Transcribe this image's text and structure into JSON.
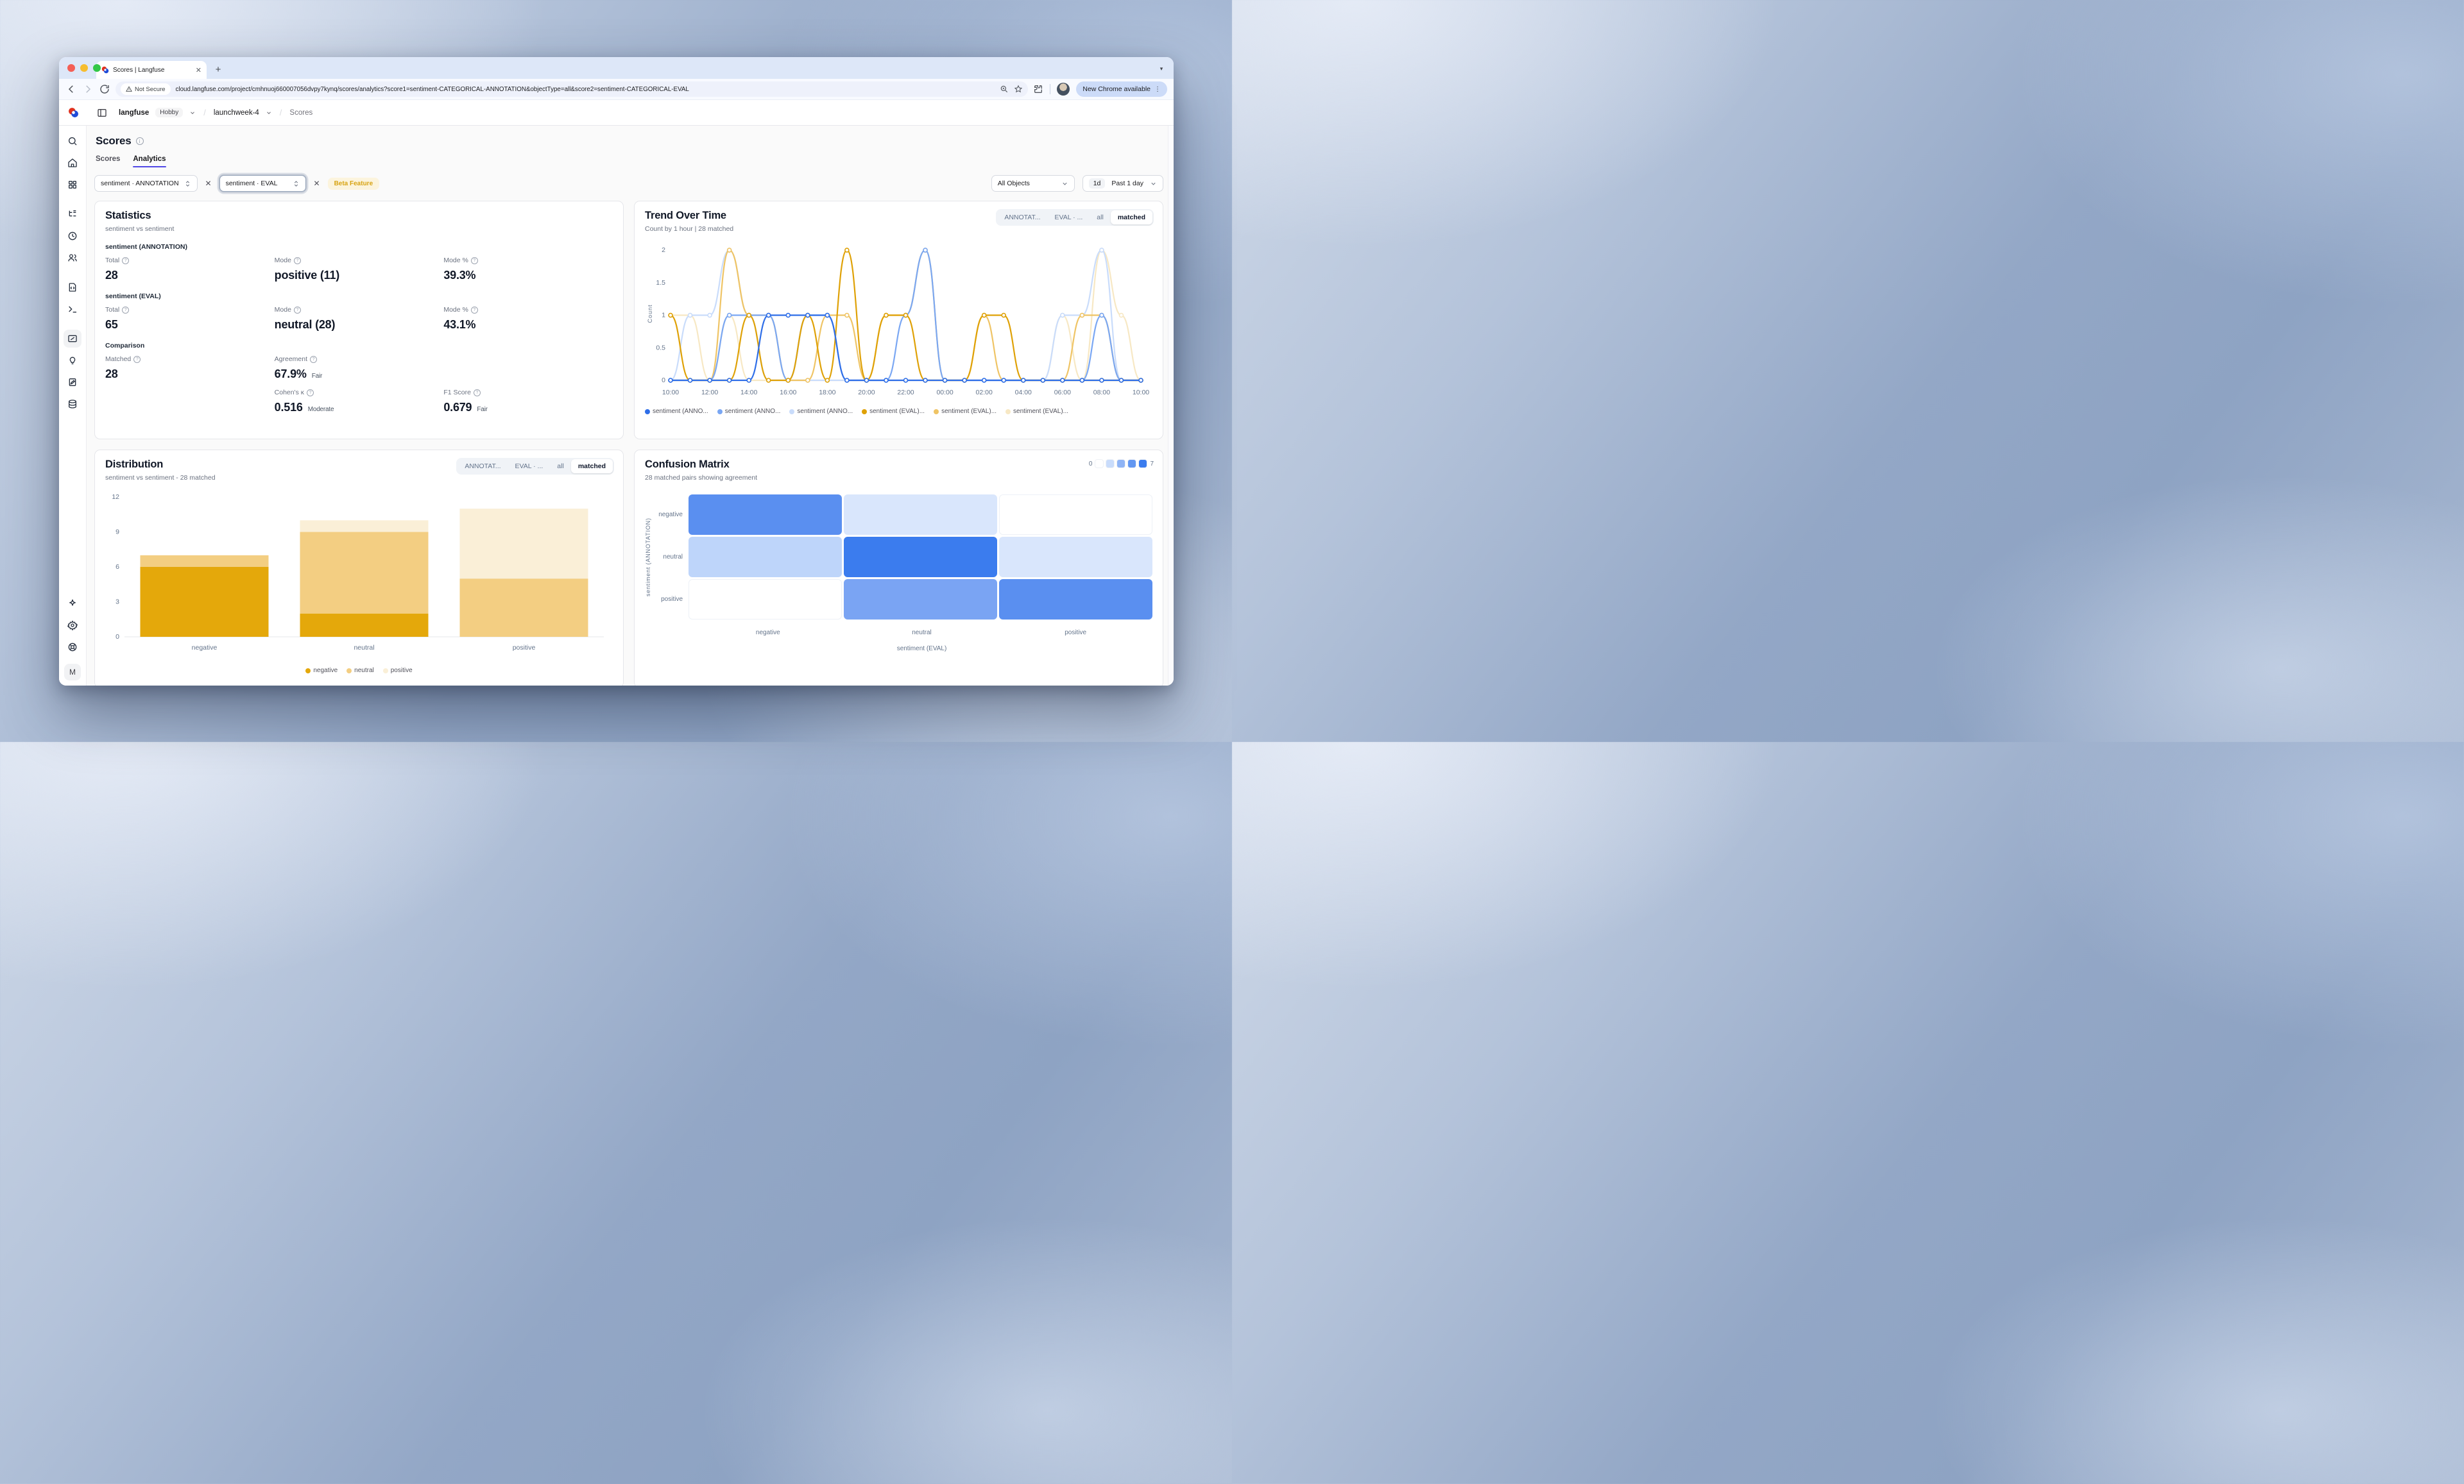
{
  "browser": {
    "tab_title": "Scores | Langfuse",
    "not_secure": "Not Secure",
    "url": "cloud.langfuse.com/project/cmhnuoj660007056dvpy7kynq/scores/analytics?score1=sentiment-CATEGORICAL-ANNOTATION&objectType=all&score2=sentiment-CATEGORICAL-EVAL",
    "update_label": "New Chrome available"
  },
  "breadcrumb": {
    "org": "langfuse",
    "plan": "Hobby",
    "sep1": "/",
    "project": "launchweek-4",
    "sep2": "/",
    "page": "Scores"
  },
  "page": {
    "title": "Scores",
    "tabs": [
      {
        "label": "Scores",
        "active": false
      },
      {
        "label": "Analytics",
        "active": true
      }
    ]
  },
  "filters": {
    "score1": "sentiment · ANNOTATION",
    "score2": "sentiment · EVAL",
    "beta_badge": "Beta Feature",
    "objects": "All Objects",
    "range_short": "1d",
    "range_label": "Past 1 day"
  },
  "avatar_initial": "M",
  "statistics": {
    "title": "Statistics",
    "subtitle": "sentiment vs sentiment",
    "sections": [
      {
        "heading": "sentiment (ANNOTATION)",
        "rows": [
          [
            {
              "label": "Total",
              "value": "28"
            },
            {
              "label": "Mode",
              "value": "positive (11)"
            },
            {
              "label": "Mode %",
              "value": "39.3%"
            }
          ]
        ]
      },
      {
        "heading": "sentiment (EVAL)",
        "rows": [
          [
            {
              "label": "Total",
              "value": "65"
            },
            {
              "label": "Mode",
              "value": "neutral (28)"
            },
            {
              "label": "Mode %",
              "value": "43.1%"
            }
          ]
        ]
      },
      {
        "heading": "Comparison",
        "rows": [
          [
            {
              "label": "Matched",
              "value": "28"
            },
            {
              "label": "Agreement",
              "value": "67.9%",
              "qualifier": "Fair"
            },
            null
          ],
          [
            null,
            {
              "label": "Cohen's κ",
              "value": "0.516",
              "qualifier": "Moderate"
            },
            {
              "label": "F1 Score",
              "value": "0.679",
              "qualifier": "Fair"
            }
          ]
        ]
      }
    ]
  },
  "trend": {
    "title": "Trend Over Time",
    "subtitle": "Count by 1 hour | 28 matched",
    "toggle_options": [
      "ANNOTAT...",
      "EVAL · ...",
      "all",
      "matched"
    ],
    "toggle_active": "matched"
  },
  "distribution": {
    "title": "Distribution",
    "subtitle": "sentiment vs sentiment - 28 matched",
    "toggle_options": [
      "ANNOTAT...",
      "EVAL · ...",
      "all",
      "matched"
    ],
    "toggle_active": "matched"
  },
  "confusion": {
    "title": "Confusion Matrix",
    "subtitle": "28 matched pairs showing agreement",
    "scale_min": "0",
    "scale_max": "7"
  },
  "chart_data": [
    {
      "id": "trend_over_time",
      "type": "line",
      "title": "Trend Over Time",
      "ylabel": "Count",
      "ylim": [
        0,
        2.05
      ],
      "yticks": [
        0,
        0.5,
        1,
        1.5,
        2
      ],
      "x": [
        "10:00",
        "11:00",
        "12:00",
        "13:00",
        "14:00",
        "15:00",
        "16:00",
        "17:00",
        "18:00",
        "19:00",
        "20:00",
        "21:00",
        "22:00",
        "23:00",
        "00:00",
        "01:00",
        "02:00",
        "03:00",
        "04:00",
        "05:00",
        "06:00",
        "07:00",
        "08:00",
        "09:00",
        "10:00"
      ],
      "xtick_every": 2,
      "grid": false,
      "legend_position": "bottom",
      "series": [
        {
          "name": "sentiment (ANNO...",
          "color": "#2E6EE8",
          "values": [
            0,
            0,
            0,
            0,
            0,
            1,
            1,
            1,
            1,
            0,
            0,
            0,
            0,
            0,
            0,
            0,
            0,
            0,
            0,
            0,
            0,
            0,
            0,
            0,
            0
          ]
        },
        {
          "name": "sentiment (ANNO...",
          "color": "#7AA7F3",
          "values": [
            0,
            0,
            0,
            1,
            1,
            1,
            0,
            1,
            1,
            0,
            0,
            0,
            1,
            2,
            0,
            0,
            0,
            0,
            0,
            0,
            0,
            0,
            1,
            0,
            0
          ]
        },
        {
          "name": "sentiment (ANNO...",
          "color": "#C9DCFB",
          "values": [
            0,
            1,
            1,
            2,
            1,
            0,
            0,
            0,
            0,
            0,
            0,
            0,
            0,
            0,
            0,
            0,
            0,
            0,
            0,
            0,
            1,
            1,
            2,
            0,
            0
          ]
        },
        {
          "name": "sentiment (EVAL)...",
          "color": "#DFA106",
          "values": [
            1,
            0,
            0,
            0,
            1,
            0,
            0,
            1,
            0,
            2,
            0,
            1,
            1,
            0,
            0,
            0,
            1,
            1,
            0,
            0,
            0,
            0,
            0,
            0,
            0
          ]
        },
        {
          "name": "sentiment (EVAL)...",
          "color": "#EFC465",
          "values": [
            0,
            0,
            0,
            2,
            1,
            1,
            0,
            0,
            1,
            1,
            0,
            1,
            1,
            2,
            0,
            0,
            1,
            0,
            0,
            0,
            0,
            1,
            1,
            0,
            0
          ]
        },
        {
          "name": "sentiment (EVAL)...",
          "color": "#F7E8C4",
          "values": [
            1,
            1,
            0,
            1,
            0,
            0,
            0,
            0,
            0,
            0,
            0,
            0,
            0,
            0,
            0,
            0,
            0,
            0,
            0,
            0,
            1,
            0,
            2,
            1,
            0
          ]
        }
      ]
    },
    {
      "id": "distribution",
      "type": "bar",
      "stacked": true,
      "categories": [
        "negative",
        "neutral",
        "positive"
      ],
      "yticks": [
        0,
        3,
        6,
        9,
        12
      ],
      "ylim": [
        0,
        12
      ],
      "series": [
        {
          "name": "negative",
          "color": "#E4A80B",
          "values": [
            6,
            2,
            0
          ]
        },
        {
          "name": "neutral",
          "color": "#F3CE82",
          "values": [
            1,
            7,
            5
          ]
        },
        {
          "name": "positive",
          "color": "#FAEFD7",
          "values": [
            0,
            1,
            6
          ]
        }
      ]
    },
    {
      "id": "confusion_matrix",
      "type": "heatmap",
      "rows": [
        "negative",
        "neutral",
        "positive"
      ],
      "cols": [
        "negative",
        "neutral",
        "positive"
      ],
      "row_axis_label": "sentiment (ANNOTATION)",
      "col_axis_label": "sentiment (EVAL)",
      "values": [
        [
          6,
          1,
          0
        ],
        [
          2,
          7,
          1
        ],
        [
          0,
          5,
          6
        ]
      ],
      "cell_colors": [
        [
          "#5A8FF0",
          "#D9E6FC",
          "#FFFFFF"
        ],
        [
          "#BED5FA",
          "#3B7CEE",
          "#D9E6FC"
        ],
        [
          "#FFFFFF",
          "#7AA4F3",
          "#5A8FF0"
        ]
      ],
      "scale": {
        "min": 0,
        "max": 7,
        "swatches": [
          "#FFFFFF",
          "#C9DCFB",
          "#8FB4F5",
          "#6397F1",
          "#3B7CEE"
        ]
      }
    }
  ]
}
